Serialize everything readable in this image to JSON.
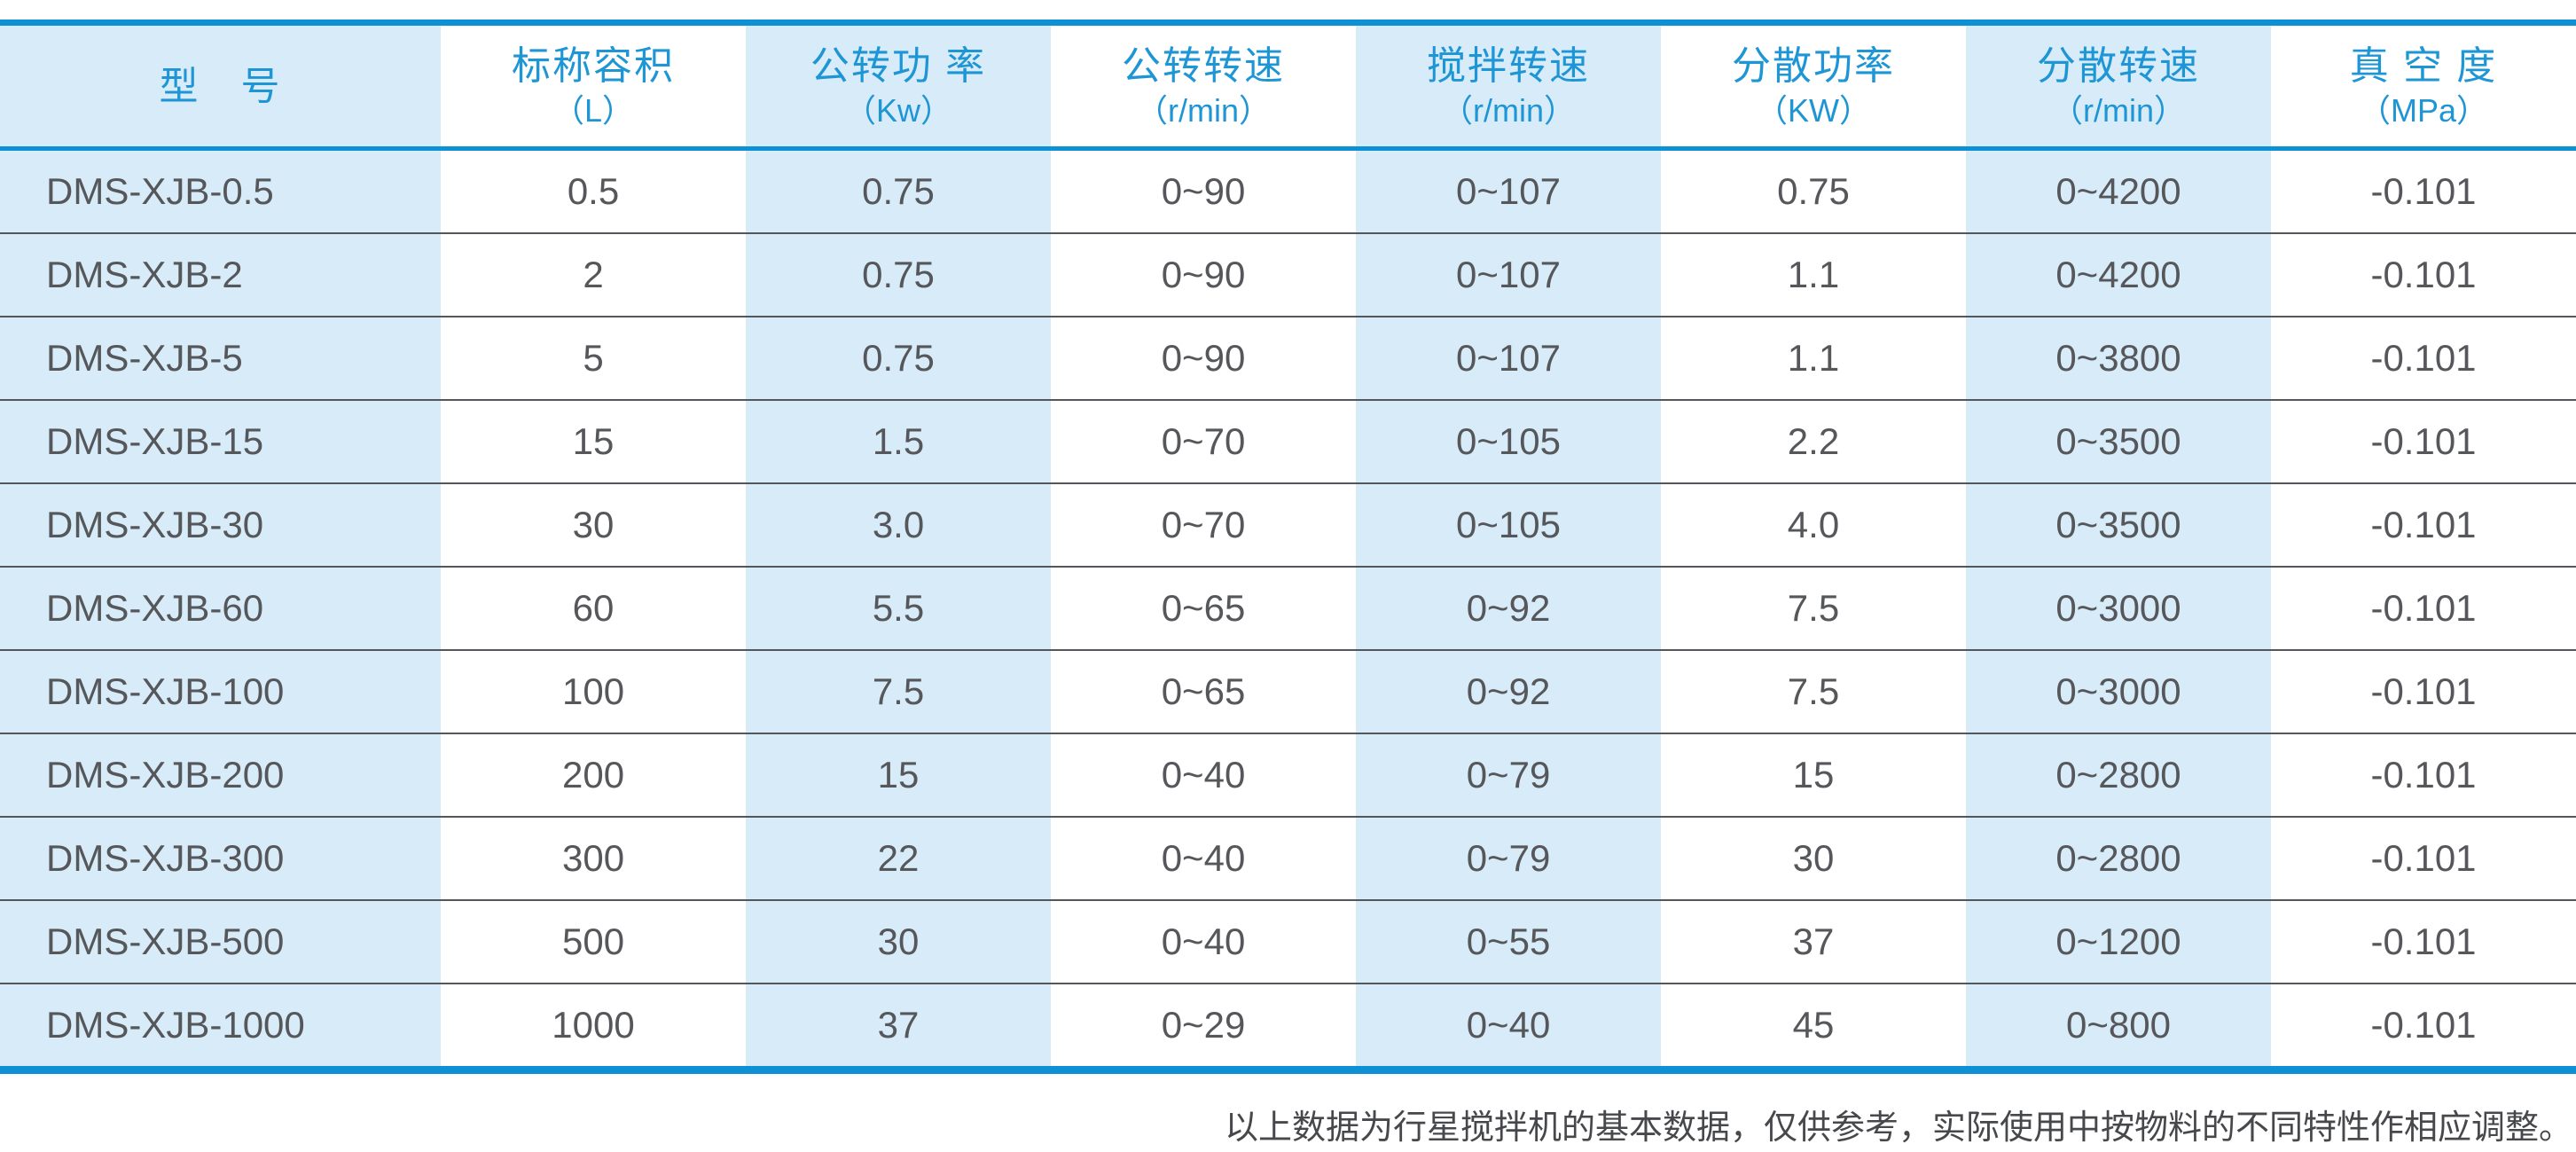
{
  "colors": {
    "accent_blue_line": "#0e90d4",
    "header_text_blue": "#1e96d6",
    "stripe_light_blue": "#d8ebf8",
    "data_text_gray": "#55575a",
    "row_separator_gray": "#53575b"
  },
  "table": {
    "columns": [
      {
        "label": "型　号",
        "unit": ""
      },
      {
        "label": "标称容积",
        "unit": "（L）"
      },
      {
        "label": "公转功 率",
        "unit": "（Kw）"
      },
      {
        "label": "公转转速",
        "unit": "（r/min）"
      },
      {
        "label": "搅拌转速",
        "unit": "（r/min）"
      },
      {
        "label": "分散功率",
        "unit": "（KW）"
      },
      {
        "label": "分散转速",
        "unit": "（r/min）"
      },
      {
        "label": "真 空 度",
        "unit": "（MPa）"
      }
    ],
    "rows": [
      [
        "DMS-XJB-0.5",
        "0.5",
        "0.75",
        "0~90",
        "0~107",
        "0.75",
        "0~4200",
        "-0.101"
      ],
      [
        "DMS-XJB-2",
        "2",
        "0.75",
        "0~90",
        "0~107",
        "1.1",
        "0~4200",
        "-0.101"
      ],
      [
        "DMS-XJB-5",
        "5",
        "0.75",
        "0~90",
        "0~107",
        "1.1",
        "0~3800",
        "-0.101"
      ],
      [
        "DMS-XJB-15",
        "15",
        "1.5",
        "0~70",
        "0~105",
        "2.2",
        "0~3500",
        "-0.101"
      ],
      [
        "DMS-XJB-30",
        "30",
        "3.0",
        "0~70",
        "0~105",
        "4.0",
        "0~3500",
        "-0.101"
      ],
      [
        "DMS-XJB-60",
        "60",
        "5.5",
        "0~65",
        "0~92",
        "7.5",
        "0~3000",
        "-0.101"
      ],
      [
        "DMS-XJB-100",
        "100",
        "7.5",
        "0~65",
        "0~92",
        "7.5",
        "0~3000",
        "-0.101"
      ],
      [
        "DMS-XJB-200",
        "200",
        "15",
        "0~40",
        "0~79",
        "15",
        "0~2800",
        "-0.101"
      ],
      [
        "DMS-XJB-300",
        "300",
        "22",
        "0~40",
        "0~79",
        "30",
        "0~2800",
        "-0.101"
      ],
      [
        "DMS-XJB-500",
        "500",
        "30",
        "0~40",
        "0~55",
        "37",
        "0~1200",
        "-0.101"
      ],
      [
        "DMS-XJB-1000",
        "1000",
        "37",
        "0~29",
        "0~40",
        "45",
        "0~800",
        "-0.101"
      ]
    ]
  },
  "footer": {
    "note": "以上数据为行星搅拌机的基本数据，仅供参考，实际使用中按物料的不同特性作相应调整。"
  }
}
